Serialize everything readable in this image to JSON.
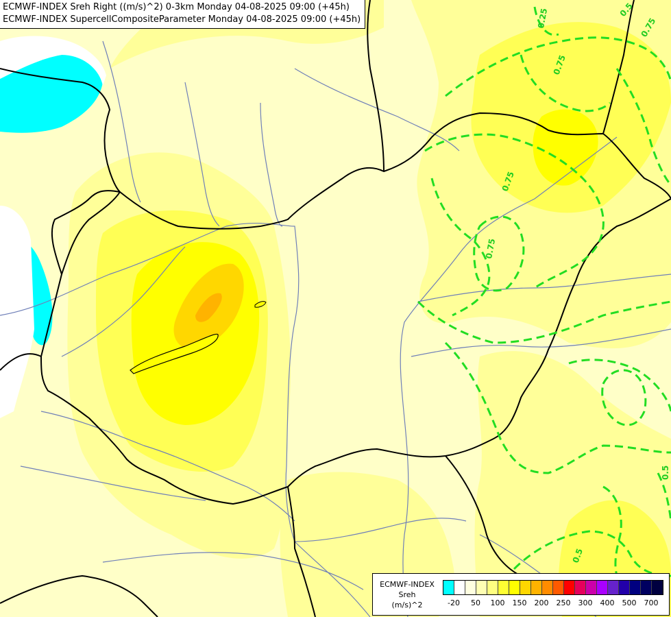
{
  "titles": [
    "ECMWF-INDEX Sreh Right ((m/s)^2) 0-3km Monday 04-08-2025 09:00 (+45h)",
    "ECMWF-INDEX SupercellCompositeParameter Monday 04-08-2025 09:00 (+45h)"
  ],
  "contour_labels": [
    "0.25",
    "0.75",
    "0.75",
    "0.5",
    "0.75",
    "0.75",
    "0.5",
    "0.5"
  ],
  "legend": {
    "line1": "ECMWF-INDEX",
    "line2": "Sreh",
    "line3": "(m/s)^2",
    "colors": [
      "#00ffff",
      "#ffffff",
      "#ffffe0",
      "#ffffb3",
      "#ffff80",
      "#ffff33",
      "#ffff00",
      "#ffd700",
      "#ffb300",
      "#ff8c00",
      "#ff5a00",
      "#ff0000",
      "#e6005c",
      "#cc00aa",
      "#aa00ff",
      "#6622cc",
      "#2200aa",
      "#000080",
      "#000060",
      "#000040"
    ],
    "ticks": [
      "-20",
      "50",
      "100",
      "150",
      "200",
      "250",
      "300",
      "400",
      "500",
      "700"
    ]
  },
  "colors": {
    "cyan_shade": "#00ffff",
    "pale_yellow": "#ffffc8",
    "light_yellow": "#ffff99",
    "yellow": "#ffff55",
    "bright_yellow": "#ffff00",
    "gold": "#ffd700",
    "orange": "#ffb300",
    "border_line": "#000000",
    "river_line": "#6f7fb8",
    "contour_line": "#22dd22"
  }
}
